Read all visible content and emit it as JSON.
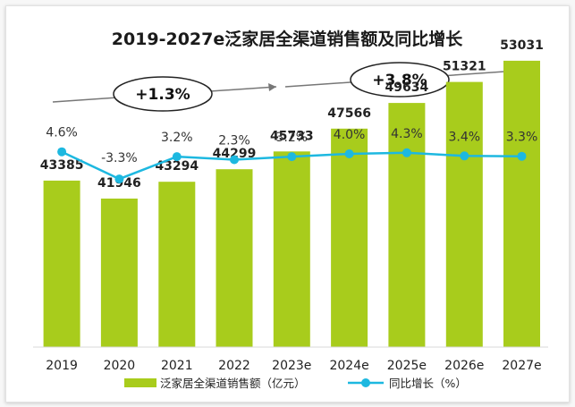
{
  "chart_data": {
    "type": "bar",
    "title": "2019-2027e泛家居全渠道销售额及同比增长",
    "categories": [
      "2019",
      "2020",
      "2021",
      "2022",
      "2023e",
      "2024e",
      "2025e",
      "2026e",
      "2027e"
    ],
    "series": [
      {
        "name": "泛家居全渠道销售额（亿元）",
        "type": "bar",
        "values": [
          43385,
          41946,
          43294,
          44299,
          45733,
          47566,
          49634,
          51321,
          53031
        ],
        "labels": [
          "43385",
          "41946",
          "43294",
          "44299",
          "45733",
          "47566",
          "49634",
          "51321",
          "53031"
        ],
        "color": "#a8cc1c"
      },
      {
        "name": "同比增长（%）",
        "type": "line",
        "values": [
          4.6,
          -3.3,
          3.2,
          2.3,
          3.2,
          4.0,
          4.3,
          3.4,
          3.3
        ],
        "labels": [
          "4.6%",
          "-3.3%",
          "3.2%",
          "2.3%",
          "3.2%",
          "4.0%",
          "4.3%",
          "3.4%",
          "3.3%"
        ],
        "color": "#1db8e0"
      }
    ],
    "annotations": [
      "+1.3%",
      "+3.8%"
    ],
    "legend": "bottom",
    "grid": false,
    "colors": {
      "arrow": "#777777",
      "ellipse_border": "#222222"
    }
  }
}
